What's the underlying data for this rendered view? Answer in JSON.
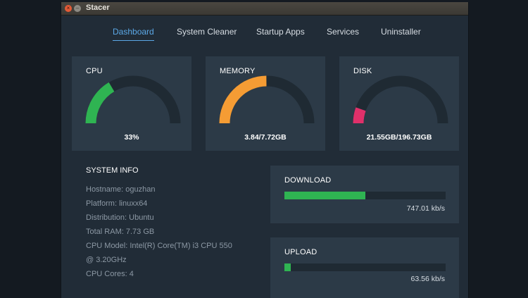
{
  "window": {
    "title": "Stacer",
    "close_glyph": "×",
    "minimize_glyph": "–"
  },
  "nav": {
    "tabs": [
      {
        "label": "Dashboard",
        "active": true
      },
      {
        "label": "System Cleaner",
        "active": false
      },
      {
        "label": "Startup Apps",
        "active": false
      },
      {
        "label": "Services",
        "active": false
      },
      {
        "label": "Uninstaller",
        "active": false
      }
    ]
  },
  "gauges": {
    "cpu": {
      "title": "CPU",
      "value_text": "33%",
      "percent": 33,
      "color": "#2fb452"
    },
    "memory": {
      "title": "MEMORY",
      "value_text": "3.84/7.72GB",
      "percent": 49.7,
      "color": "#f59c34"
    },
    "disk": {
      "title": "DISK",
      "value_text": "21.55GB/196.73GB",
      "percent": 10.9,
      "color": "#e0306a"
    }
  },
  "system_info": {
    "title": "SYSTEM INFO",
    "lines": [
      "Hostname: oguzhan",
      "Platform: linuxx64",
      "Distribution: Ubuntu",
      "Total RAM: 7.73 GB",
      "CPU Model: Intel(R) Core(TM) i3 CPU 550",
      "@ 3.20GHz",
      "CPU Cores: 4"
    ]
  },
  "network": {
    "download": {
      "title": "DOWNLOAD",
      "speed": "747.01 kb/s",
      "level": 0.5
    },
    "upload": {
      "title": "UPLOAD",
      "speed": "63.56 kb/s",
      "level": 0.04
    }
  },
  "colors": {
    "accent": "#5ba8e6",
    "track": "#1f2a33",
    "card": "#2c3a47",
    "window_bg": "#212c37",
    "bar_green": "#2fb452"
  }
}
